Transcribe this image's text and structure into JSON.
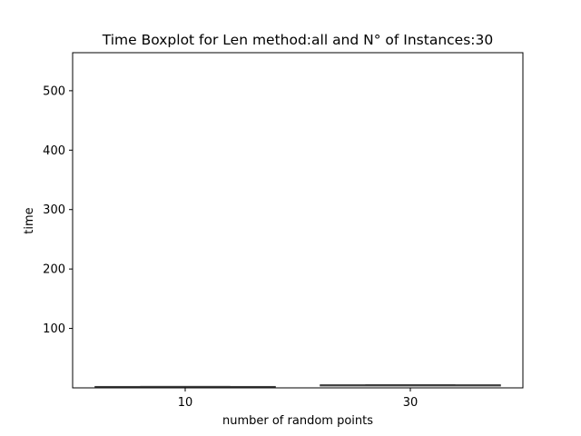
{
  "chart_data": {
    "type": "boxplot",
    "title": "Time Boxplot for Len method:all and N° of Instances:30",
    "xlabel": "number of random points",
    "ylabel": "time",
    "categories": [
      "10",
      "30"
    ],
    "boxes": [
      {
        "category": "10",
        "min": 1.5,
        "q1": 1.8,
        "median": 2.0,
        "q3": 2.2,
        "max": 2.5
      },
      {
        "category": "30",
        "min": 3.8,
        "q1": 4.3,
        "median": 4.6,
        "q3": 4.9,
        "max": 5.4
      }
    ],
    "yticks": [
      100,
      200,
      300,
      400,
      500
    ],
    "ylim": [
      0,
      564
    ],
    "grid": false,
    "legend": false,
    "box_color": "#3f3f3f"
  }
}
